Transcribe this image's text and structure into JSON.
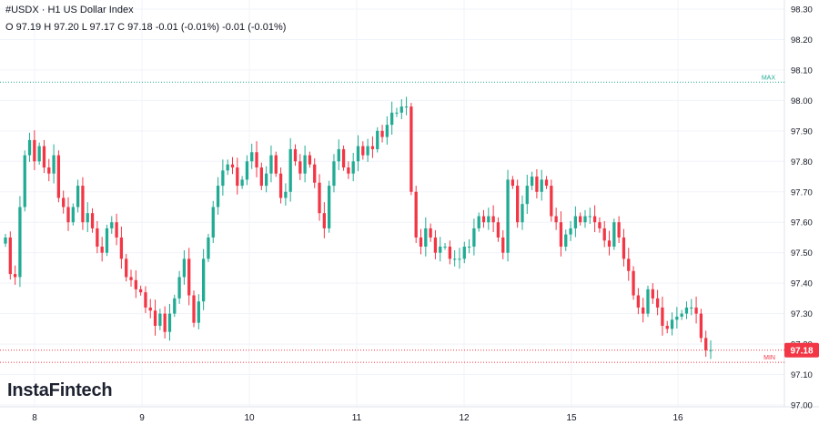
{
  "header": {
    "title": "#USDX · H1 US Dollar Index",
    "ohlc": "O 97.19 H 97.20 L 97.17 C 97.18 -0.01 (-0.01%) -0.01 (-0.01%)"
  },
  "brand": {
    "logo": "InstaFintech"
  },
  "markers": {
    "max_label": "MAX",
    "min_label": "MIN",
    "max_value": 98.06,
    "min_value": 97.14,
    "current_price_label": "97.18",
    "current_price": 97.18
  },
  "colors": {
    "up": "#22ab94",
    "down": "#f23645",
    "max_line": "#22ab94",
    "min_line": "#f23645",
    "current_price": "#f23645",
    "grid": "#f0f3fa"
  },
  "chart_data": {
    "type": "candlestick",
    "title": "#USDX · H1 US Dollar Index",
    "timeframe": "H1",
    "grid": true,
    "x_ticks": [
      "8",
      "9",
      "10",
      "11",
      "12",
      "15",
      "16"
    ],
    "y_ticks": [
      "98.30",
      "98.20",
      "98.10",
      "98.00",
      "97.90",
      "97.80",
      "97.70",
      "97.60",
      "97.50",
      "97.40",
      "97.30",
      "97.20",
      "97.10",
      "97.00"
    ],
    "ylim": [
      97.0,
      98.3
    ],
    "series": [
      {
        "name": "#USDX",
        "closes": [
          97.55,
          97.43,
          97.42,
          97.65,
          97.82,
          97.87,
          97.8,
          97.85,
          97.78,
          97.76,
          97.82,
          97.68,
          97.65,
          97.6,
          97.65,
          97.72,
          97.6,
          97.63,
          97.58,
          97.52,
          97.5,
          97.58,
          97.6,
          97.55,
          97.48,
          97.42,
          97.41,
          97.38,
          97.37,
          97.32,
          97.31,
          97.26,
          97.3,
          97.24,
          97.3,
          97.35,
          97.42,
          97.48,
          97.36,
          97.27,
          97.34,
          97.48,
          97.55,
          97.65,
          97.72,
          97.77,
          97.79,
          97.78,
          97.72,
          97.74,
          97.8,
          97.83,
          97.78,
          97.72,
          97.76,
          97.82,
          97.76,
          97.68,
          97.7,
          97.84,
          97.8,
          97.76,
          97.82,
          97.79,
          97.73,
          97.63,
          97.58,
          97.72,
          97.8,
          97.84,
          97.78,
          97.76,
          97.8,
          97.85,
          97.82,
          97.85,
          97.84,
          97.9,
          97.88,
          97.92,
          97.96,
          97.96,
          97.98,
          97.98,
          97.7,
          97.55,
          97.52,
          97.58,
          97.55,
          97.5,
          97.52,
          97.52,
          97.48,
          97.48,
          97.48,
          97.52,
          97.52,
          97.58,
          97.62,
          97.6,
          97.62,
          97.6,
          97.55,
          97.5,
          97.74,
          97.72,
          97.6,
          97.66,
          97.72,
          97.75,
          97.7,
          97.74,
          97.72,
          97.62,
          97.6,
          97.52,
          97.56,
          97.58,
          97.62,
          97.6,
          97.62,
          97.62,
          97.6,
          97.58,
          97.54,
          97.52,
          97.6,
          97.55,
          97.48,
          97.44,
          97.36,
          97.32,
          97.3,
          97.38,
          97.35,
          97.32,
          97.26,
          97.25,
          97.28,
          97.29,
          97.3,
          97.32,
          97.32,
          97.3,
          97.22,
          97.18,
          97.18
        ]
      }
    ]
  }
}
